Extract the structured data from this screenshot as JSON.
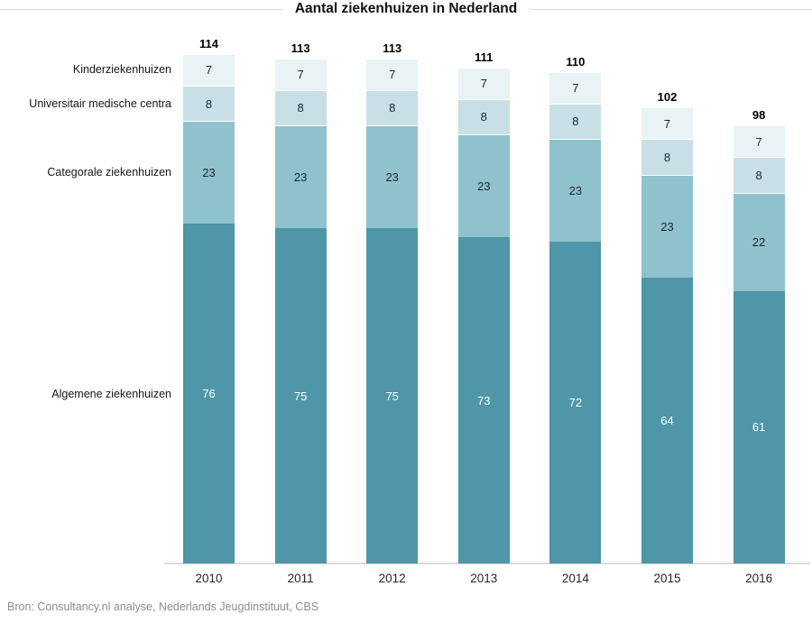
{
  "chart_data": {
    "type": "bar",
    "stacked": true,
    "title": "Aantal ziekenhuizen in Nederland",
    "categories": [
      "2010",
      "2011",
      "2012",
      "2013",
      "2014",
      "2015",
      "2016"
    ],
    "series": [
      {
        "name": "Algemene ziekenhuizen",
        "color": "#4e96a8",
        "label_color": "#ffffff",
        "values": [
          76,
          75,
          75,
          73,
          72,
          64,
          61
        ]
      },
      {
        "name": "Categorale ziekenhuizen",
        "color": "#8fc2cc",
        "label_color": "#1c2430",
        "values": [
          23,
          23,
          23,
          23,
          23,
          23,
          22
        ]
      },
      {
        "name": "Universitair medische centra",
        "color": "#c9dfe6",
        "label_color": "#1c2430",
        "values": [
          8,
          8,
          8,
          8,
          8,
          8,
          8
        ]
      },
      {
        "name": "Kinderziekenhuizen",
        "color": "#e9f2f4",
        "label_color": "#1c2430",
        "values": [
          7,
          7,
          7,
          7,
          7,
          7,
          7
        ]
      }
    ],
    "totals": [
      114,
      113,
      113,
      111,
      110,
      102,
      98
    ],
    "ylim": [
      0,
      114
    ],
    "grid": false,
    "legend_position": "left-labels",
    "source": "Bron: Consultancy.nl analyse, Nederlands Jeugdinstituut, CBS"
  }
}
